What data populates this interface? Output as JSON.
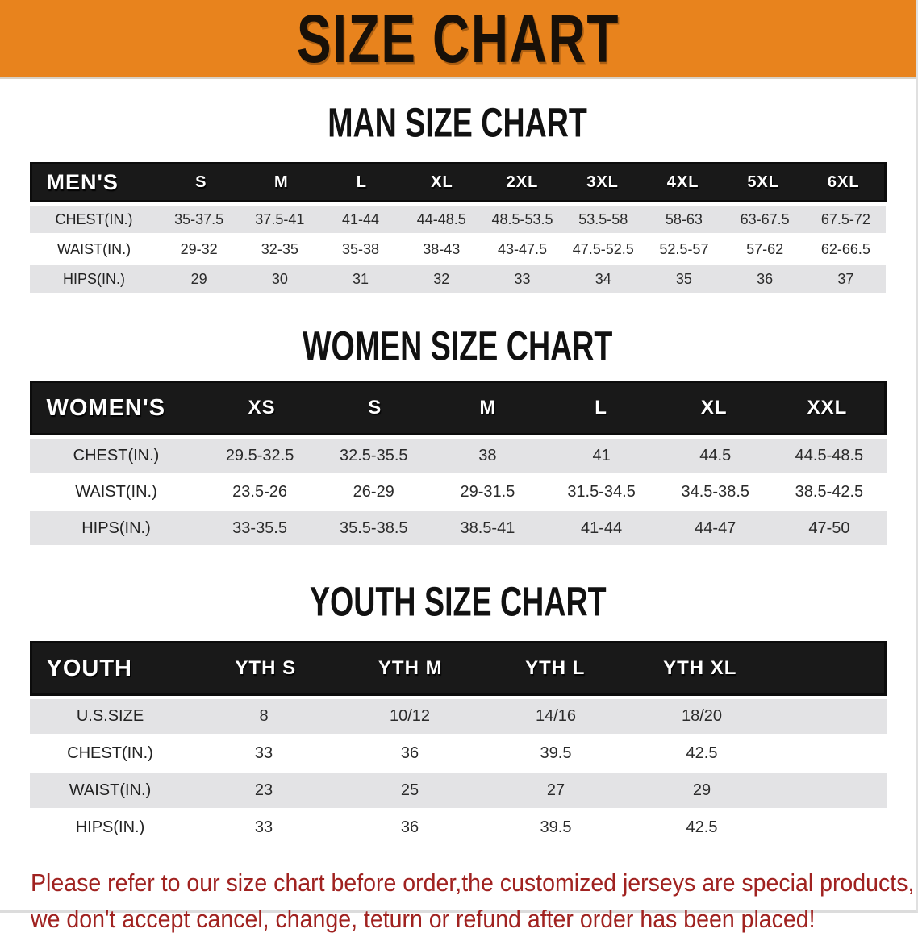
{
  "banner": {
    "title": "SIZE CHART",
    "bg_color": "#E8831D"
  },
  "sections": {
    "men": {
      "heading": "MAN SIZE CHART",
      "table": {
        "header_label": "MEN'S",
        "columns": [
          "S",
          "M",
          "L",
          "XL",
          "2XL",
          "3XL",
          "4XL",
          "5XL",
          "6XL"
        ],
        "rows": [
          {
            "label": "CHEST(IN.)",
            "values": [
              "35-37.5",
              "37.5-41",
              "41-44",
              "44-48.5",
              "48.5-53.5",
              "53.5-58",
              "58-63",
              "63-67.5",
              "67.5-72"
            ]
          },
          {
            "label": "WAIST(IN.)",
            "values": [
              "29-32",
              "32-35",
              "35-38",
              "38-43",
              "43-47.5",
              "47.5-52.5",
              "52.5-57",
              "57-62",
              "62-66.5"
            ]
          },
          {
            "label": "HIPS(IN.)",
            "values": [
              "29",
              "30",
              "31",
              "32",
              "33",
              "34",
              "35",
              "36",
              "37"
            ]
          }
        ]
      }
    },
    "women": {
      "heading": "WOMEN SIZE CHART",
      "table": {
        "header_label": "WOMEN'S",
        "columns": [
          "XS",
          "S",
          "M",
          "L",
          "XL",
          "XXL"
        ],
        "rows": [
          {
            "label": "CHEST(IN.)",
            "values": [
              "29.5-32.5",
              "32.5-35.5",
              "38",
              "41",
              "44.5",
              "44.5-48.5"
            ]
          },
          {
            "label": "WAIST(IN.)",
            "values": [
              "23.5-26",
              "26-29",
              "29-31.5",
              "31.5-34.5",
              "34.5-38.5",
              "38.5-42.5"
            ]
          },
          {
            "label": "HIPS(IN.)",
            "values": [
              "33-35.5",
              "35.5-38.5",
              "38.5-41",
              "41-44",
              "44-47",
              "47-50"
            ]
          }
        ]
      }
    },
    "youth": {
      "heading": "YOUTH SIZE CHART",
      "table": {
        "header_label": "YOUTH",
        "columns": [
          "YTH S",
          "YTH M",
          "YTH L",
          "YTH XL"
        ],
        "rows": [
          {
            "label": "U.S.SIZE",
            "values": [
              "8",
              "10/12",
              "14/16",
              "18/20"
            ]
          },
          {
            "label": "CHEST(IN.)",
            "values": [
              "33",
              "36",
              "39.5",
              "42.5"
            ]
          },
          {
            "label": "WAIST(IN.)",
            "values": [
              "23",
              "25",
              "27",
              "29"
            ]
          },
          {
            "label": "HIPS(IN.)",
            "values": [
              "33",
              "36",
              "39.5",
              "42.5"
            ]
          }
        ]
      }
    }
  },
  "disclaimer": {
    "line1": "Please refer to our size chart before order,the customized jerseys are special products,",
    "line2": "we don't accept cancel, change, teturn or refund after order has been placed!",
    "color": "#A02220"
  }
}
